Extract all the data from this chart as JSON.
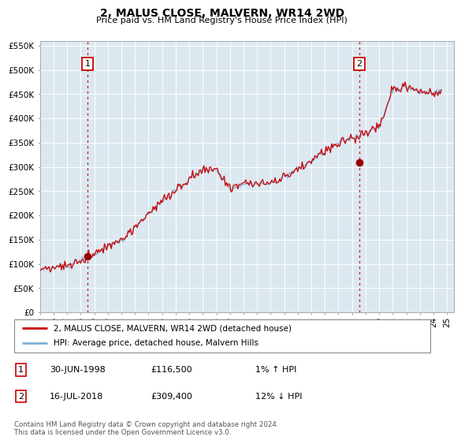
{
  "title": "2, MALUS CLOSE, MALVERN, WR14 2WD",
  "subtitle": "Price paid vs. HM Land Registry's House Price Index (HPI)",
  "bg_color": "#dce8f0",
  "hpi_color": "#7bafd4",
  "price_color": "#cc0000",
  "marker_color": "#990000",
  "dashed_color": "#cc0000",
  "ylim": [
    0,
    560000
  ],
  "yticks": [
    0,
    50000,
    100000,
    150000,
    200000,
    250000,
    300000,
    350000,
    400000,
    450000,
    500000,
    550000
  ],
  "ytick_labels": [
    "£0",
    "£50K",
    "£100K",
    "£150K",
    "£200K",
    "£250K",
    "£300K",
    "£350K",
    "£400K",
    "£450K",
    "£500K",
    "£550K"
  ],
  "xlim_start": 1995.0,
  "xlim_end": 2025.5,
  "xticks": [
    1995,
    1996,
    1997,
    1998,
    1999,
    2000,
    2001,
    2002,
    2003,
    2004,
    2005,
    2006,
    2007,
    2008,
    2009,
    2010,
    2011,
    2012,
    2013,
    2014,
    2015,
    2016,
    2017,
    2018,
    2019,
    2020,
    2021,
    2022,
    2023,
    2024,
    2025
  ],
  "xtick_labels": [
    "95",
    "96",
    "97",
    "98",
    "99",
    "00",
    "01",
    "02",
    "03",
    "04",
    "05",
    "06",
    "07",
    "08",
    "09",
    "10",
    "11",
    "12",
    "13",
    "14",
    "15",
    "16",
    "17",
    "18",
    "19",
    "20",
    "21",
    "22",
    "23",
    "24",
    "25"
  ],
  "sale1_x": 1998.5,
  "sale1_y": 116500,
  "sale2_x": 2018.54,
  "sale2_y": 309400,
  "legend_price_label": "2, MALUS CLOSE, MALVERN, WR14 2WD (detached house)",
  "legend_hpi_label": "HPI: Average price, detached house, Malvern Hills",
  "footer": "Contains HM Land Registry data © Crown copyright and database right 2024.\nThis data is licensed under the Open Government Licence v3.0."
}
